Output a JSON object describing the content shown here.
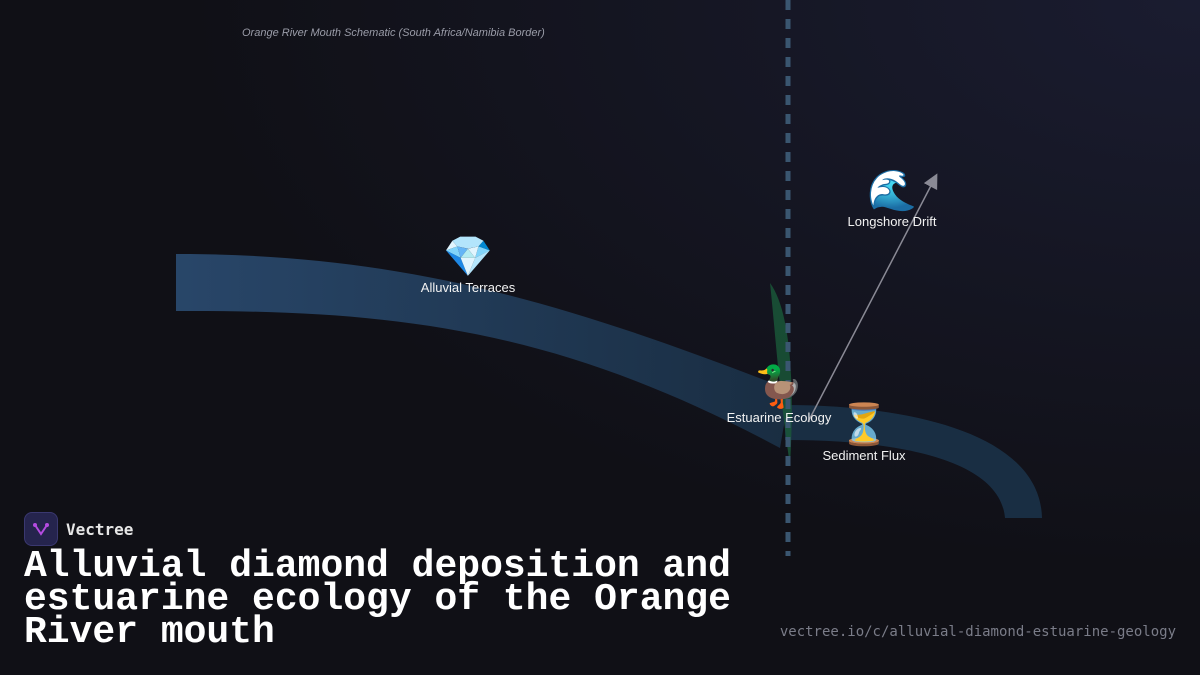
{
  "caption": "Orange River Mouth Schematic (South Africa/Namibia Border)",
  "nodes": [
    {
      "label": "Alluvial Terraces",
      "icon": "💎",
      "icon_name": "gem-icon"
    },
    {
      "label": "Longshore Drift",
      "icon": "🌊",
      "icon_name": "wave-icon"
    },
    {
      "label": "Estuarine Ecology",
      "icon": "🦆",
      "icon_name": "duck-icon"
    },
    {
      "label": "Sediment Flux",
      "icon": "⏳",
      "icon_name": "hourglass-icon"
    }
  ],
  "brand": {
    "name": "Vectree",
    "accent": "#b44be0"
  },
  "title": "Alluvial diamond deposition and estuarine ecology of the Orange River mouth",
  "url": "vectree.io/c/alluvial-diamond-estuarine-geology",
  "colors": {
    "river": "#2a4a70",
    "border": "#3a5670",
    "reeds": "#1a5a3a",
    "arrow": "#8a8a95"
  }
}
